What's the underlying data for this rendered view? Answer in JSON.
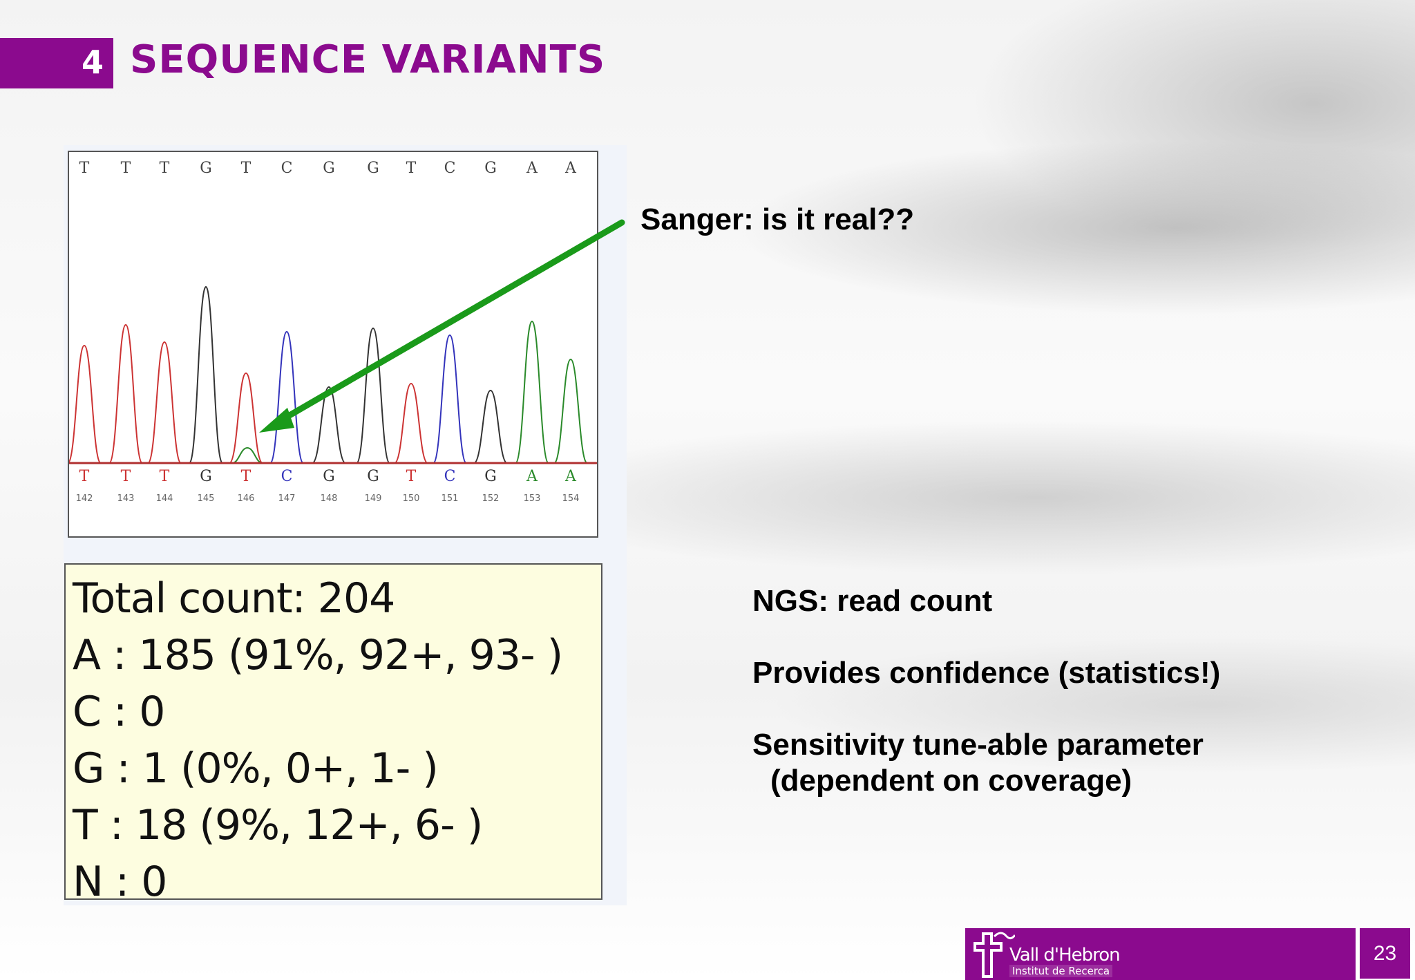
{
  "header": {
    "section_number": "4",
    "title": "SEQUENCE VARIANTS"
  },
  "chromatogram": {
    "top_bases": [
      "T",
      "T",
      "T",
      "G",
      "T",
      "C",
      "G",
      "G",
      "T",
      "C",
      "G",
      "A",
      "A"
    ],
    "bottom_bases": [
      "T",
      "T",
      "T",
      "G",
      "T",
      "C",
      "G",
      "G",
      "T",
      "C",
      "G",
      "A",
      "A"
    ],
    "positions": [
      "142",
      "143",
      "144",
      "145",
      "146",
      "147",
      "148",
      "149",
      "150",
      "151",
      "152",
      "153",
      "154"
    ],
    "base_colors": {
      "A": "#2a8a2a",
      "C": "#3333bb",
      "G": "#333333",
      "T": "#cc3333"
    }
  },
  "read_counts": {
    "lines": [
      "Total count: 204",
      "A : 185 (91%, 92+, 93- )",
      "C : 0",
      "G : 1 (0%, 0+, 1- )",
      "T : 18 (9%, 12+, 6- )",
      "N : 0"
    ]
  },
  "annotations": {
    "sanger": "Sanger: is it real??",
    "ngs_points": {
      "p1": "NGS: read count",
      "p2": "Provides confidence (statistics!)",
      "p3_line1": "Sensitivity tune-able parameter",
      "p3_line2": "(dependent on coverage)"
    }
  },
  "footer": {
    "logo_name": "Vall d'Hebron",
    "logo_subtitle": "Institut de Recerca",
    "page_number": "23"
  },
  "colors": {
    "accent": "#8b0a8e",
    "arrow": "#1a9a1a"
  }
}
